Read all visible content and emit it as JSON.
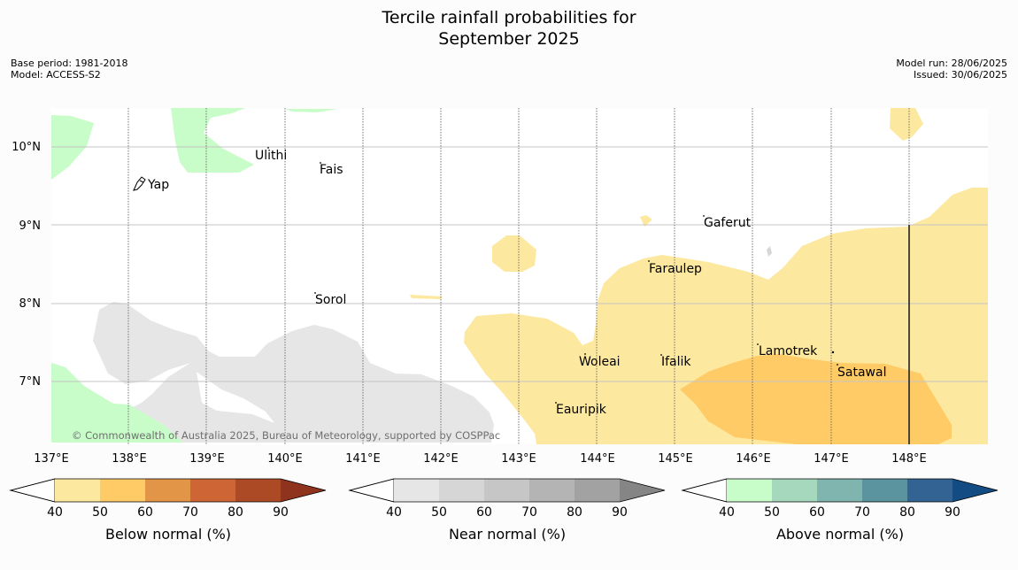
{
  "title_line1": "Tercile rainfall probabilities for",
  "title_line2": "September 2025",
  "meta_left": [
    "Base period: 1981-2018",
    "Model: ACCESS-S2"
  ],
  "meta_right": [
    "Model run: 28/06/2025",
    "Issued: 30/06/2025"
  ],
  "copyright": "© Commonwealth of Australia 2025, Bureau of Meteorology, supported by COSPPac",
  "lat_labels": [
    "10°N",
    "9°N",
    "8°N",
    "7°N"
  ],
  "lon_labels": [
    "137°E",
    "138°E",
    "139°E",
    "140°E",
    "141°E",
    "142°E",
    "143°E",
    "144°E",
    "145°E",
    "146°E",
    "147°E",
    "148°E"
  ],
  "places": [
    "Ulithi",
    "Fais",
    "Yap",
    "Gaferut",
    "Faraulep",
    "Sorol",
    "Woleai",
    "Ifalik",
    "Lamotrek",
    "Satawal",
    "Eauripik"
  ],
  "legends": [
    {
      "label": "Below normal (%)",
      "colors": [
        "#fde89f",
        "#fecb66",
        "#e29447",
        "#cd6534",
        "#ad4a26",
        "#90331e"
      ]
    },
    {
      "label": "Near normal (%)",
      "colors": [
        "#e6e6e6",
        "#d6d6d6",
        "#c6c6c6",
        "#b4b4b4",
        "#a2a2a2",
        "#858585"
      ]
    },
    {
      "label": "Above normal (%)",
      "colors": [
        "#c8fcc8",
        "#a5d8bc",
        "#80b4af",
        "#5b949f",
        "#326393",
        "#124c82"
      ]
    }
  ],
  "legend_ticks": [
    "40",
    "50",
    "60",
    "70",
    "80",
    "90"
  ]
}
